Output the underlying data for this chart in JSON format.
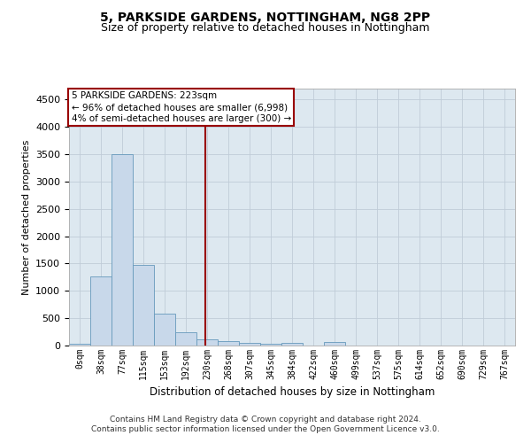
{
  "title1": "5, PARKSIDE GARDENS, NOTTINGHAM, NG8 2PP",
  "title2": "Size of property relative to detached houses in Nottingham",
  "xlabel": "Distribution of detached houses by size in Nottingham",
  "ylabel": "Number of detached properties",
  "bar_labels": [
    "0sqm",
    "38sqm",
    "77sqm",
    "115sqm",
    "153sqm",
    "192sqm",
    "230sqm",
    "268sqm",
    "307sqm",
    "345sqm",
    "384sqm",
    "422sqm",
    "460sqm",
    "499sqm",
    "537sqm",
    "575sqm",
    "614sqm",
    "652sqm",
    "690sqm",
    "729sqm",
    "767sqm"
  ],
  "bar_values": [
    40,
    1270,
    3500,
    1480,
    580,
    240,
    110,
    80,
    50,
    30,
    50,
    0,
    60,
    0,
    0,
    0,
    0,
    0,
    0,
    0,
    0
  ],
  "bar_color": "#c8d8ea",
  "bar_edge_color": "#6699bb",
  "grid_color": "#c0ccd8",
  "background_color": "#dde8f0",
  "vline_x": 5.93,
  "vline_color": "#990000",
  "annotation_box_text": "5 PARKSIDE GARDENS: 223sqm\n← 96% of detached houses are smaller (6,998)\n4% of semi-detached houses are larger (300) →",
  "annotation_box_color": "#990000",
  "ylim": [
    0,
    4700
  ],
  "yticks": [
    0,
    500,
    1000,
    1500,
    2000,
    2500,
    3000,
    3500,
    4000,
    4500
  ],
  "footer1": "Contains HM Land Registry data © Crown copyright and database right 2024.",
  "footer2": "Contains public sector information licensed under the Open Government Licence v3.0.",
  "title1_fontsize": 10,
  "title2_fontsize": 9,
  "annotation_fontsize": 7.5,
  "footer_fontsize": 6.5,
  "ylabel_fontsize": 8,
  "xlabel_fontsize": 8.5
}
